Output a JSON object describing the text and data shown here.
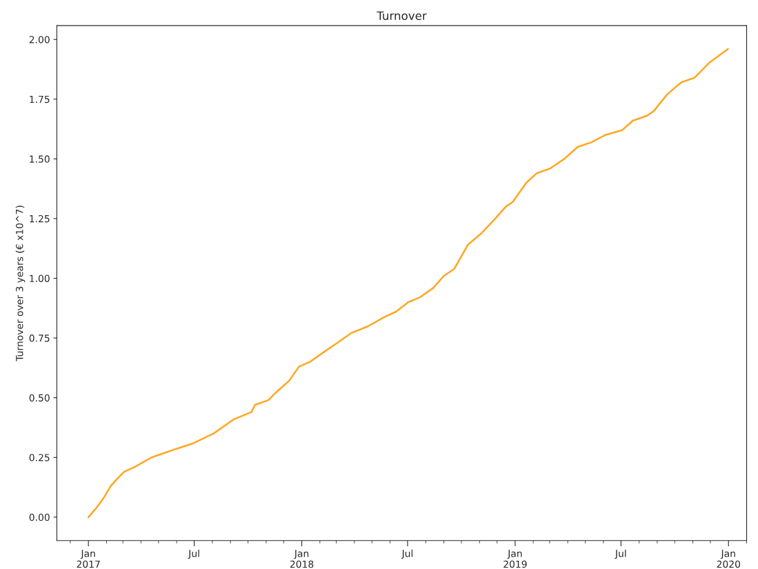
{
  "chart_data": {
    "type": "line",
    "title": "Turnover",
    "ylabel": "Turnover over 3 years (€ x10^7)",
    "x": [
      "2017-01-01",
      "2017-01-15",
      "2017-01-27",
      "2017-02-08",
      "2017-02-19",
      "2017-03-03",
      "2017-03-21",
      "2017-04-19",
      "2017-05-24",
      "2017-06-30",
      "2017-08-03",
      "2017-09-07",
      "2017-10-07",
      "2017-10-13",
      "2017-11-05",
      "2017-11-17",
      "2017-12-10",
      "2017-12-27",
      "2018-01-15",
      "2018-02-07",
      "2018-03-03",
      "2018-03-26",
      "2018-04-25",
      "2018-05-24",
      "2018-06-11",
      "2018-07-02",
      "2018-07-22",
      "2018-08-14",
      "2018-09-01",
      "2018-09-19",
      "2018-10-12",
      "2018-11-05",
      "2018-11-28",
      "2018-12-16",
      "2018-12-28",
      "2019-01-20",
      "2019-02-07",
      "2019-03-02",
      "2019-03-26",
      "2019-04-18",
      "2019-05-12",
      "2019-06-04",
      "2019-07-03",
      "2019-07-21",
      "2019-08-14",
      "2019-08-26",
      "2019-09-18",
      "2019-10-12",
      "2019-11-04",
      "2019-11-28",
      "2019-12-31"
    ],
    "series": [
      {
        "color": "#ffa620",
        "values": [
          0.0,
          0.04,
          0.08,
          0.13,
          0.16,
          0.19,
          0.21,
          0.25,
          0.28,
          0.31,
          0.35,
          0.41,
          0.44,
          0.47,
          0.49,
          0.52,
          0.57,
          0.63,
          0.65,
          0.69,
          0.73,
          0.77,
          0.8,
          0.84,
          0.86,
          0.9,
          0.92,
          0.96,
          1.01,
          1.04,
          1.14,
          1.19,
          1.25,
          1.3,
          1.32,
          1.4,
          1.44,
          1.46,
          1.5,
          1.55,
          1.57,
          1.6,
          1.62,
          1.66,
          1.68,
          1.7,
          1.77,
          1.82,
          1.84,
          1.9,
          1.96
        ]
      }
    ],
    "xlim": [
      "2016-11-08",
      "2020-02-01"
    ],
    "xticks": [
      {
        "value": "2016-12-01",
        "label": null
      },
      {
        "value": "2017-01-01",
        "label": "Jan\n2017"
      },
      {
        "value": "2017-02-01",
        "label": null
      },
      {
        "value": "2017-03-01",
        "label": null
      },
      {
        "value": "2017-04-01",
        "label": null
      },
      {
        "value": "2017-05-01",
        "label": null
      },
      {
        "value": "2017-06-01",
        "label": null
      },
      {
        "value": "2017-07-01",
        "label": "Jul"
      },
      {
        "value": "2017-08-01",
        "label": null
      },
      {
        "value": "2017-09-01",
        "label": null
      },
      {
        "value": "2017-10-01",
        "label": null
      },
      {
        "value": "2017-11-01",
        "label": null
      },
      {
        "value": "2017-12-01",
        "label": null
      },
      {
        "value": "2018-01-01",
        "label": "Jan\n2018"
      },
      {
        "value": "2018-02-01",
        "label": null
      },
      {
        "value": "2018-03-01",
        "label": null
      },
      {
        "value": "2018-04-01",
        "label": null
      },
      {
        "value": "2018-05-01",
        "label": null
      },
      {
        "value": "2018-06-01",
        "label": null
      },
      {
        "value": "2018-07-01",
        "label": "Jul"
      },
      {
        "value": "2018-08-01",
        "label": null
      },
      {
        "value": "2018-09-01",
        "label": null
      },
      {
        "value": "2018-10-01",
        "label": null
      },
      {
        "value": "2018-11-01",
        "label": null
      },
      {
        "value": "2018-12-01",
        "label": null
      },
      {
        "value": "2019-01-01",
        "label": "Jan\n2019"
      },
      {
        "value": "2019-02-01",
        "label": null
      },
      {
        "value": "2019-03-01",
        "label": null
      },
      {
        "value": "2019-04-01",
        "label": null
      },
      {
        "value": "2019-05-01",
        "label": null
      },
      {
        "value": "2019-06-01",
        "label": null
      },
      {
        "value": "2019-07-01",
        "label": "Jul"
      },
      {
        "value": "2019-08-01",
        "label": null
      },
      {
        "value": "2019-09-01",
        "label": null
      },
      {
        "value": "2019-10-01",
        "label": null
      },
      {
        "value": "2019-11-01",
        "label": null
      },
      {
        "value": "2019-12-01",
        "label": null
      },
      {
        "value": "2020-01-01",
        "label": "Jan\n2020"
      },
      {
        "value": "2020-02-01",
        "label": null
      }
    ],
    "ylim": [
      -0.098,
      2.058
    ],
    "yticks": [
      {
        "value": 0,
        "label": "0.00"
      },
      {
        "value": 0.25,
        "label": "0.25"
      },
      {
        "value": 0.5,
        "label": "0.50"
      },
      {
        "value": 0.75,
        "label": "0.75"
      },
      {
        "value": 1.0,
        "label": "1.00"
      },
      {
        "value": 1.25,
        "label": "1.25"
      },
      {
        "value": 1.5,
        "label": "1.50"
      },
      {
        "value": 1.75,
        "label": "1.75"
      },
      {
        "value": 2.0,
        "label": "2.00"
      }
    ],
    "grid": false,
    "legend": false
  }
}
